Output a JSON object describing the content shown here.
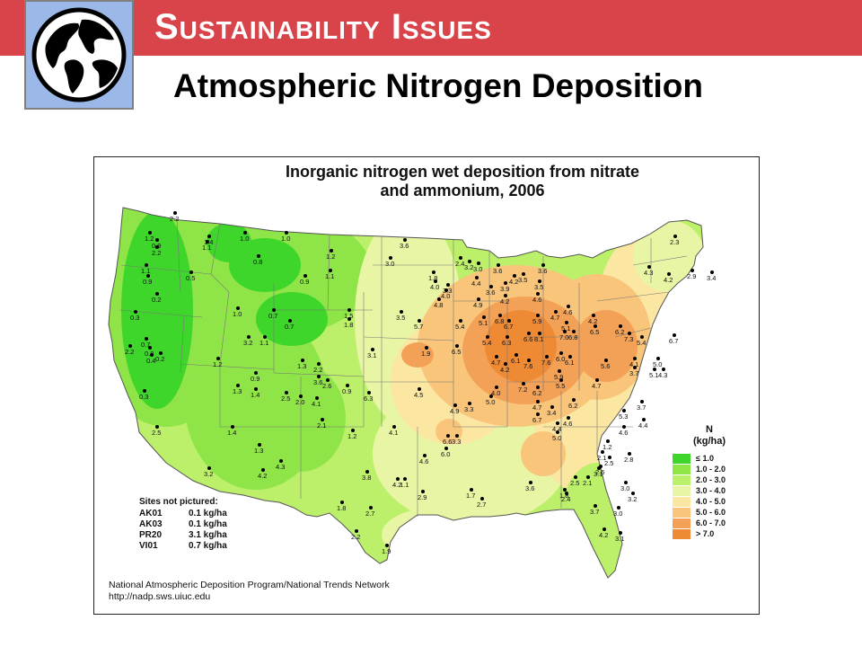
{
  "header": {
    "title": "Sustainability Issues",
    "slide_title": "Atmospheric Nitrogen Deposition",
    "logo_icon": "globe-icon",
    "bar_color": "#d9434a",
    "logo_bg": "#9bb8e8"
  },
  "map": {
    "title_line1": "Inorganic nitrogen wet deposition from nitrate",
    "title_line2": "and ammonium, 2006",
    "legend": {
      "title_line1": "N",
      "title_line2": "(kg/ha)",
      "items": [
        {
          "label": "≤ 1.0",
          "color": "#3ed62b"
        },
        {
          "label": "1.0 - 2.0",
          "color": "#8fe548"
        },
        {
          "label": "2.0 - 3.0",
          "color": "#bdf06a"
        },
        {
          "label": "3.0 - 4.0",
          "color": "#e8f5a4"
        },
        {
          "label": "4.0 - 5.0",
          "color": "#fbe7a2"
        },
        {
          "label": "5.0 - 6.0",
          "color": "#f8c57a"
        },
        {
          "label": "6.0 - 7.0",
          "color": "#f3a156"
        },
        {
          "label": "> 7.0",
          "color": "#ef8a34"
        }
      ]
    },
    "sites_not_pictured": {
      "title": "Sites not pictured:",
      "rows": [
        {
          "site": "AK01",
          "value": "0.1 kg/ha"
        },
        {
          "site": "AK03",
          "value": "0.1 kg/ha"
        },
        {
          "site": "PR20",
          "value": "3.1 kg/ha"
        },
        {
          "site": "VI01",
          "value": "0.7 kg/ha"
        }
      ]
    },
    "credit_line1": "National Atmospheric Deposition Program/National Trends Network",
    "credit_line2": "http://nadp.sws.uiuc.edu",
    "sample_values": [
      "2.2",
      "1.2",
      "0.9",
      "2.2",
      "1.4",
      "1.0",
      "1.1",
      "1.0",
      "0.8",
      "1.2",
      "3.0",
      "3.6",
      "2.4",
      "3.2",
      "3.0",
      "3.6",
      "2.3",
      "1.1",
      "0.9",
      "0.5",
      "0.2",
      "0.9",
      "1.1",
      "1.8",
      "4.0",
      "3.3",
      "4.4",
      "3.6",
      "3.9",
      "3.5",
      "4.3",
      "4.2",
      "2.9",
      "3.4",
      "0.3",
      "1.0",
      "0.7",
      "0.7",
      "1.5",
      "1.8",
      "3.5",
      "4.0",
      "4.8",
      "4.9",
      "4.2",
      "4.6",
      "3.5",
      "3.6",
      "4.2",
      "4.6",
      "0.7",
      "0.8",
      "0.4",
      "2.2",
      "0.2",
      "3.2",
      "1.1",
      "3.1",
      "5.7",
      "5.4",
      "5.1",
      "6.8",
      "6.7",
      "5.9",
      "4.7",
      "5.1",
      "4.2",
      "0.3",
      "1.2",
      "1.3",
      "0.9",
      "1.4",
      "1.3",
      "2.2",
      "3.6",
      "2.6",
      "2.5",
      "2.0",
      "4.1",
      "0.9",
      "1.9",
      "6.5",
      "5.4",
      "6.3",
      "6.6",
      "8.1",
      "7.0",
      "6.8",
      "6.5",
      "6.2",
      "7.3",
      "5.4",
      "6.7",
      "6.3",
      "4.5",
      "4.7",
      "4.2",
      "6.1",
      "7.6",
      "7.6",
      "6.0",
      "6.1",
      "5.6",
      "4.1",
      "3.7",
      "5.1",
      "4.3",
      "4.0",
      "7.2",
      "5.9",
      "5.5",
      "4.7",
      "2.5",
      "1.4",
      "1.3",
      "2.1",
      "1.2",
      "4.1",
      "3.3",
      "4.9",
      "4.7",
      "6.7",
      "6.2",
      "5.0",
      "5.0",
      "3.4",
      "4.6",
      "6.2",
      "4.4",
      "3.3",
      "5.3",
      "4.4",
      "3.7",
      "4.6",
      "5.0",
      "6.6",
      "6.0",
      "3.2",
      "4.2",
      "4.3",
      "4.2",
      "1.1",
      "2.9",
      "1.7",
      "2.7",
      "3.6",
      "4.6",
      "3.8",
      "2.5",
      "1.8",
      "2.4",
      "2.1",
      "3.1",
      "2.5",
      "2.8",
      "1.2",
      "2.1",
      "2.5",
      "3.0",
      "3.2",
      "1.8",
      "2.7",
      "2.2",
      "1.9",
      "3.0",
      "3.7",
      "3.1",
      "4.2"
    ]
  }
}
